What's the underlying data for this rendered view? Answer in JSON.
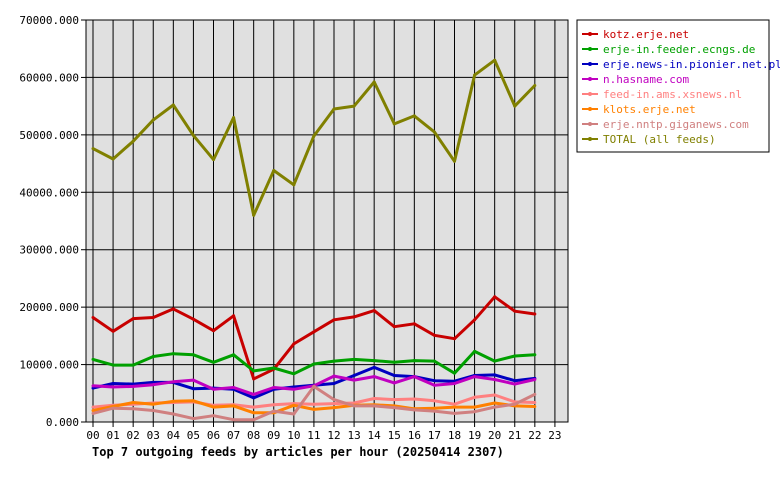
{
  "chart_data": {
    "type": "line",
    "title": "Top 7 outgoing feeds by articles per hour (20250414 2307)",
    "xlabel": "",
    "ylabel": "",
    "categories": [
      "00",
      "01",
      "02",
      "03",
      "04",
      "05",
      "06",
      "07",
      "08",
      "09",
      "10",
      "11",
      "12",
      "13",
      "14",
      "15",
      "16",
      "17",
      "18",
      "19",
      "20",
      "21",
      "22",
      "23"
    ],
    "ylim": [
      0,
      70000
    ],
    "yticks": [
      "0.000",
      "10000.000",
      "20000.000",
      "30000.000",
      "40000.000",
      "50000.000",
      "60000.000",
      "70000.000"
    ],
    "grid": true,
    "legend_position": "right",
    "series": [
      {
        "name": "kotz.erje.net",
        "color": "#c80000",
        "values": [
          18200,
          15800,
          18000,
          18200,
          19700,
          17900,
          15900,
          18500,
          7500,
          9200,
          13600,
          15700,
          17800,
          18300,
          19400,
          16600,
          17100,
          15100,
          14500,
          17800,
          21800,
          19300,
          18800,
          null
        ]
      },
      {
        "name": "erje-in.feeder.ecngs.de",
        "color": "#00a000",
        "values": [
          10900,
          9900,
          9900,
          11400,
          11900,
          11700,
          10400,
          11700,
          8900,
          9400,
          8400,
          10100,
          10600,
          10900,
          10700,
          10400,
          10700,
          10600,
          8500,
          12300,
          10600,
          11500,
          11700,
          null
        ]
      },
      {
        "name": "erje.news-in.pionier.net.pl",
        "color": "#0000c0",
        "values": [
          5900,
          6700,
          6600,
          6900,
          6900,
          5800,
          5900,
          5700,
          4200,
          5700,
          6100,
          6400,
          6700,
          8100,
          9500,
          8100,
          7900,
          7200,
          7100,
          8100,
          8200,
          7200,
          7600,
          null
        ]
      },
      {
        "name": "n.hasname.com",
        "color": "#c000c0",
        "values": [
          6300,
          6100,
          6200,
          6500,
          7000,
          7300,
          5700,
          6000,
          4800,
          6000,
          5700,
          6300,
          8000,
          7300,
          7900,
          6800,
          7900,
          6400,
          6700,
          7900,
          7400,
          6600,
          7400,
          null
        ]
      },
      {
        "name": "feed-in.ams.xsnews.nl",
        "color": "#ff8080",
        "values": [
          2600,
          2900,
          3100,
          3300,
          3400,
          3500,
          2900,
          3000,
          2600,
          3000,
          3200,
          3100,
          3200,
          3300,
          4100,
          3900,
          4000,
          3700,
          3100,
          4300,
          4700,
          3500,
          3400,
          null
        ]
      },
      {
        "name": "klots.erje.net",
        "color": "#ff8000",
        "values": [
          2000,
          2700,
          3400,
          3100,
          3600,
          3700,
          2600,
          2800,
          1600,
          1600,
          2900,
          2200,
          2500,
          2900,
          3000,
          2800,
          2300,
          2400,
          2600,
          2600,
          3300,
          2800,
          2700,
          null
        ]
      },
      {
        "name": "erje.nntp.giganews.com",
        "color": "#d08080",
        "values": [
          1500,
          2400,
          2300,
          2000,
          1400,
          600,
          1100,
          400,
          400,
          1900,
          1400,
          6200,
          3900,
          2800,
          2800,
          2500,
          2100,
          1900,
          1500,
          1800,
          2600,
          3100,
          4800,
          null
        ]
      },
      {
        "name": "TOTAL (all feeds)",
        "color": "#808000",
        "values": [
          47600,
          45800,
          48900,
          52600,
          55200,
          49900,
          45700,
          53000,
          36000,
          43800,
          41300,
          49800,
          54500,
          55000,
          59200,
          51900,
          53300,
          50500,
          45400,
          60400,
          63000,
          55000,
          58600,
          null
        ]
      }
    ]
  }
}
